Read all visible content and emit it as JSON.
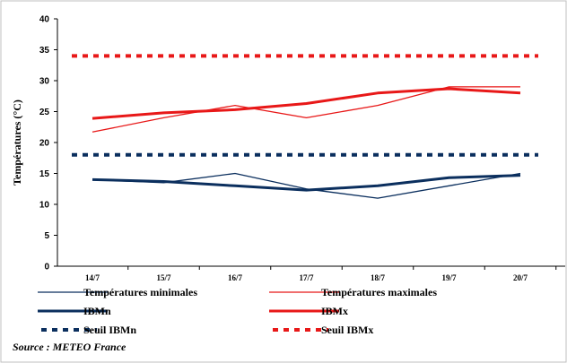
{
  "chart_data": {
    "type": "line",
    "title": "",
    "xlabel": "",
    "ylabel": "Températures  (°C)",
    "ylim": [
      0,
      40
    ],
    "yticks": [
      0,
      5,
      10,
      15,
      20,
      25,
      30,
      35,
      40
    ],
    "categories": [
      "14/7",
      "15/7",
      "16/7",
      "17/7",
      "18/7",
      "19/7",
      "20/7"
    ],
    "grid": false,
    "legend_position": "bottom",
    "series": [
      {
        "name": "Températures minimales",
        "values": [
          14,
          13.5,
          15,
          12.5,
          11,
          13,
          15
        ],
        "color": "#0b2f5e",
        "style": "thin"
      },
      {
        "name": "Températures maximales",
        "values": [
          21.7,
          24,
          26,
          24,
          26,
          29,
          29
        ],
        "color": "#e81818",
        "style": "thin"
      },
      {
        "name": "IBMn",
        "values": [
          14,
          13.7,
          13,
          12.3,
          13,
          14.3,
          14.7
        ],
        "color": "#0b2f5e",
        "style": "thick"
      },
      {
        "name": "IBMx",
        "values": [
          23.9,
          24.8,
          25.3,
          26.3,
          28,
          28.7,
          28
        ],
        "color": "#e81818",
        "style": "thick"
      },
      {
        "name": "Seuil IBMn",
        "values": [
          18,
          18,
          18,
          18,
          18,
          18,
          18
        ],
        "color": "#0b2f5e",
        "style": "dotted"
      },
      {
        "name": "Seuil IBMx",
        "values": [
          34,
          34,
          34,
          34,
          34,
          34,
          34
        ],
        "color": "#e81818",
        "style": "dotted"
      }
    ],
    "source": "Source : METEO France"
  }
}
